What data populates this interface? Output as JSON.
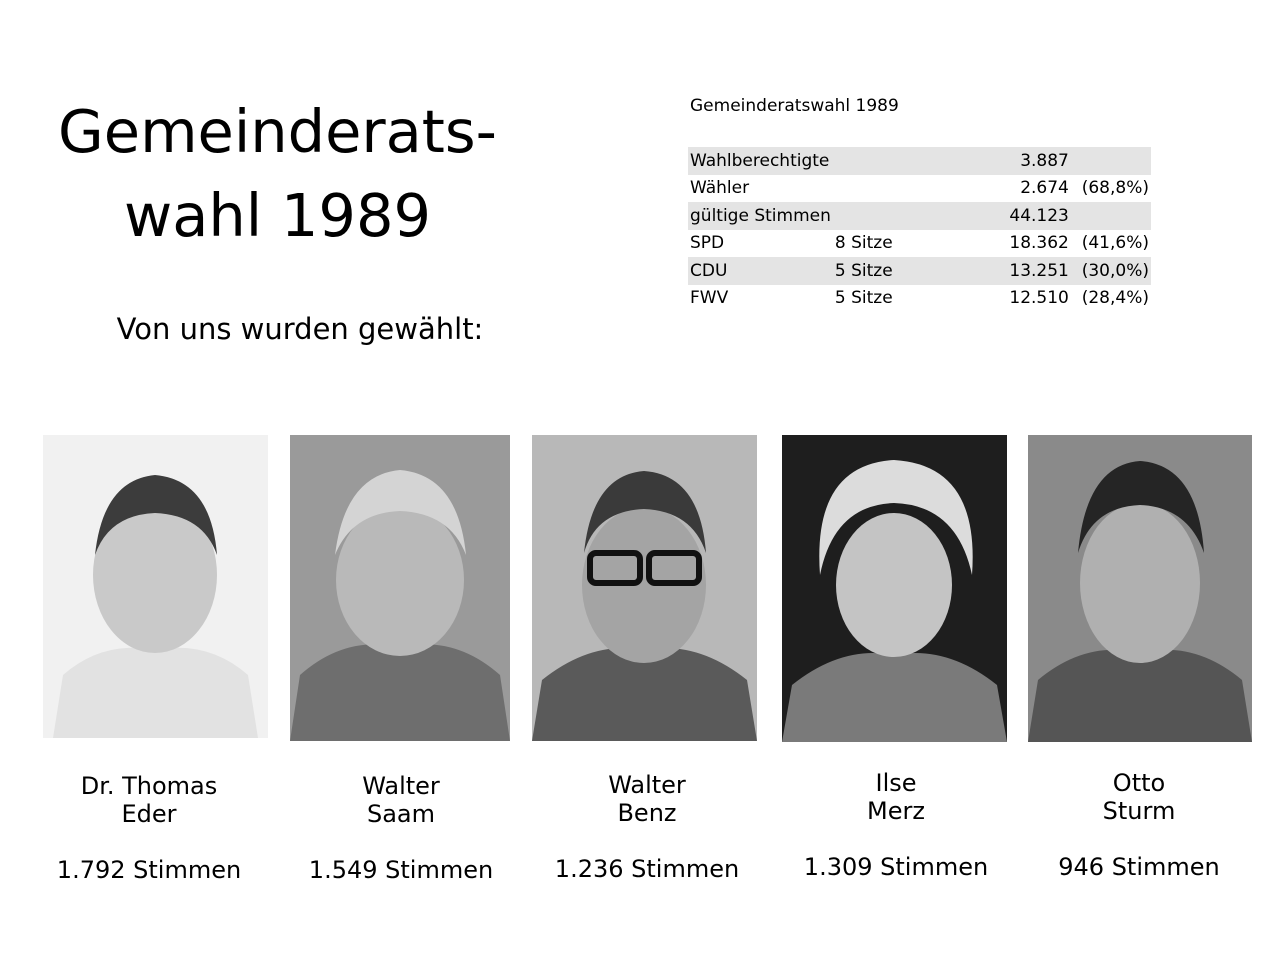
{
  "heading": {
    "line1": "Gemeinderats-",
    "line2": "wahl 1989"
  },
  "subheading": "Von uns wurden gewählt:",
  "stats": {
    "title": "Gemeinderatswahl 1989",
    "rows": [
      {
        "label": "Wahlberechtigte",
        "seats": "",
        "value": "3.887",
        "percent": ""
      },
      {
        "label": "Wähler",
        "seats": "",
        "value": "2.674",
        "percent": "(68,8%)"
      },
      {
        "label": "gültige Stimmen",
        "seats": "",
        "value": "44.123",
        "percent": ""
      },
      {
        "label": "SPD",
        "seats": "8 Sitze",
        "value": "18.362",
        "percent": "(41,6%)"
      },
      {
        "label": "CDU",
        "seats": "5 Sitze",
        "value": "13.251",
        "percent": "(30,0%)"
      },
      {
        "label": "FWV",
        "seats": "5 Sitze",
        "value": "12.510",
        "percent": "(28,4%)"
      }
    ]
  },
  "candidates": [
    {
      "first": "Dr. Thomas",
      "last": "Eder",
      "votes": "1.792 Stimmen",
      "photo_tone": "#f1f1f1"
    },
    {
      "first": "Walter",
      "last": "Saam",
      "votes": "1.549 Stimmen",
      "photo_tone": "#9a9a9a"
    },
    {
      "first": "Walter",
      "last": "Benz",
      "votes": "1.236 Stimmen",
      "photo_tone": "#b8b8b8"
    },
    {
      "first": "Ilse",
      "last": "Merz",
      "votes": "1.309 Stimmen",
      "photo_tone": "#1e1e1e"
    },
    {
      "first": "Otto",
      "last": "Sturm",
      "votes": "946 Stimmen",
      "photo_tone": "#8a8a8a"
    }
  ]
}
